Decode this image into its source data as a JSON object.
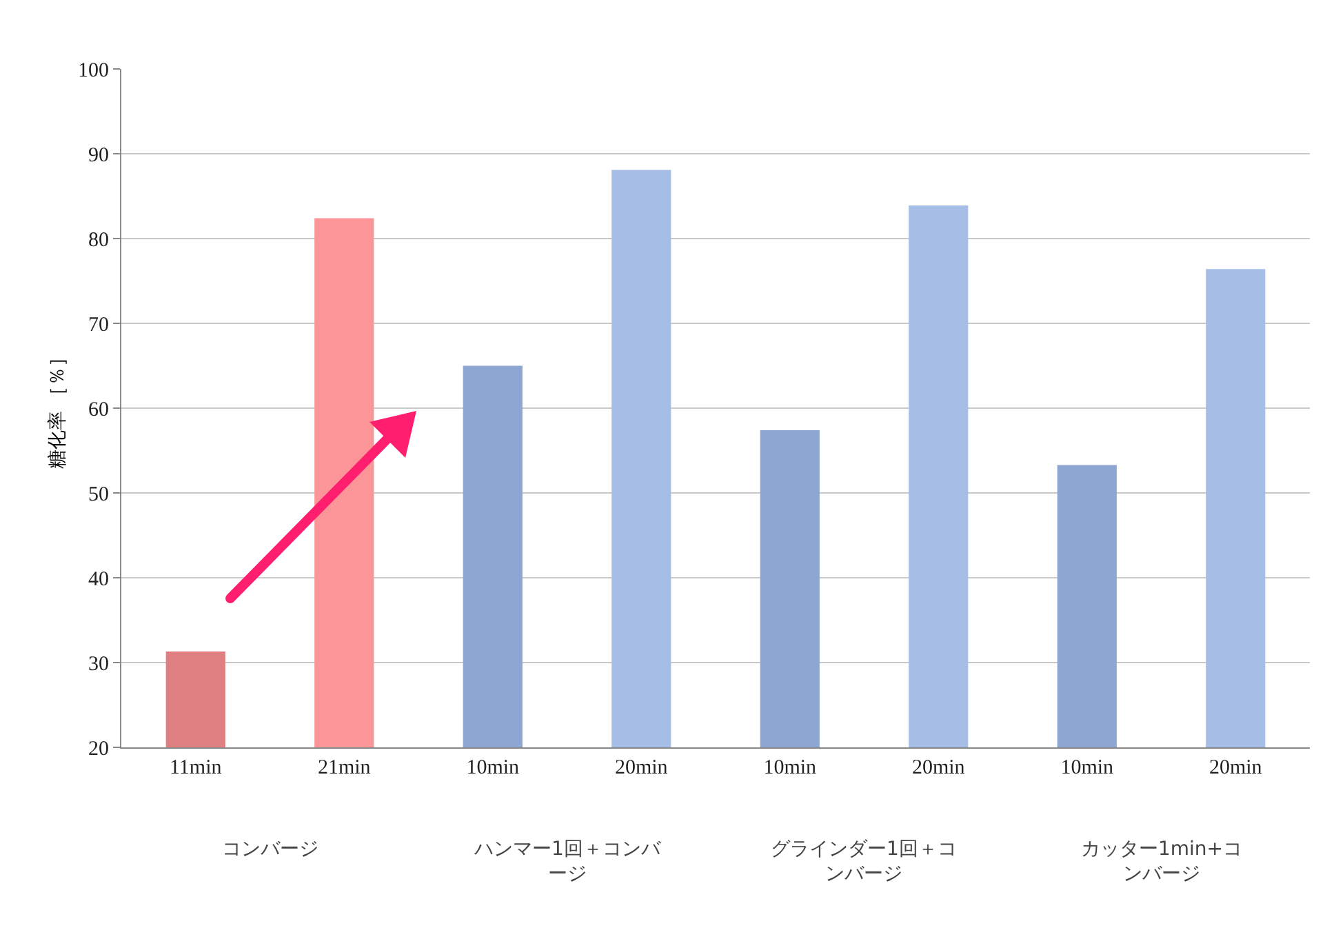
{
  "chart_data": {
    "type": "bar",
    "ylabel": "糖化率 ［％］",
    "categories": [
      "11min",
      "21min",
      "10min",
      "20min",
      "10min",
      "20min",
      "10min",
      "20min"
    ],
    "values": [
      31.3,
      82.4,
      65,
      88.1,
      57.4,
      83.9,
      53.3,
      76.4
    ],
    "colors": [
      "#e07f82",
      "#fb9597",
      "#8ea6d2",
      "#a6bee6",
      "#8ea6d2",
      "#a6bee6",
      "#8ea6d2",
      "#a6bee6"
    ],
    "ylim": [
      20,
      100
    ],
    "yticks": [
      20,
      30,
      40,
      50,
      60,
      70,
      80,
      90,
      100
    ],
    "grid": "y",
    "annotations": [
      "コンバージ",
      "ハンマー1回＋コンバージ",
      "グラインダー1回＋コンバージ",
      "カッター1min+コンバージ"
    ]
  }
}
